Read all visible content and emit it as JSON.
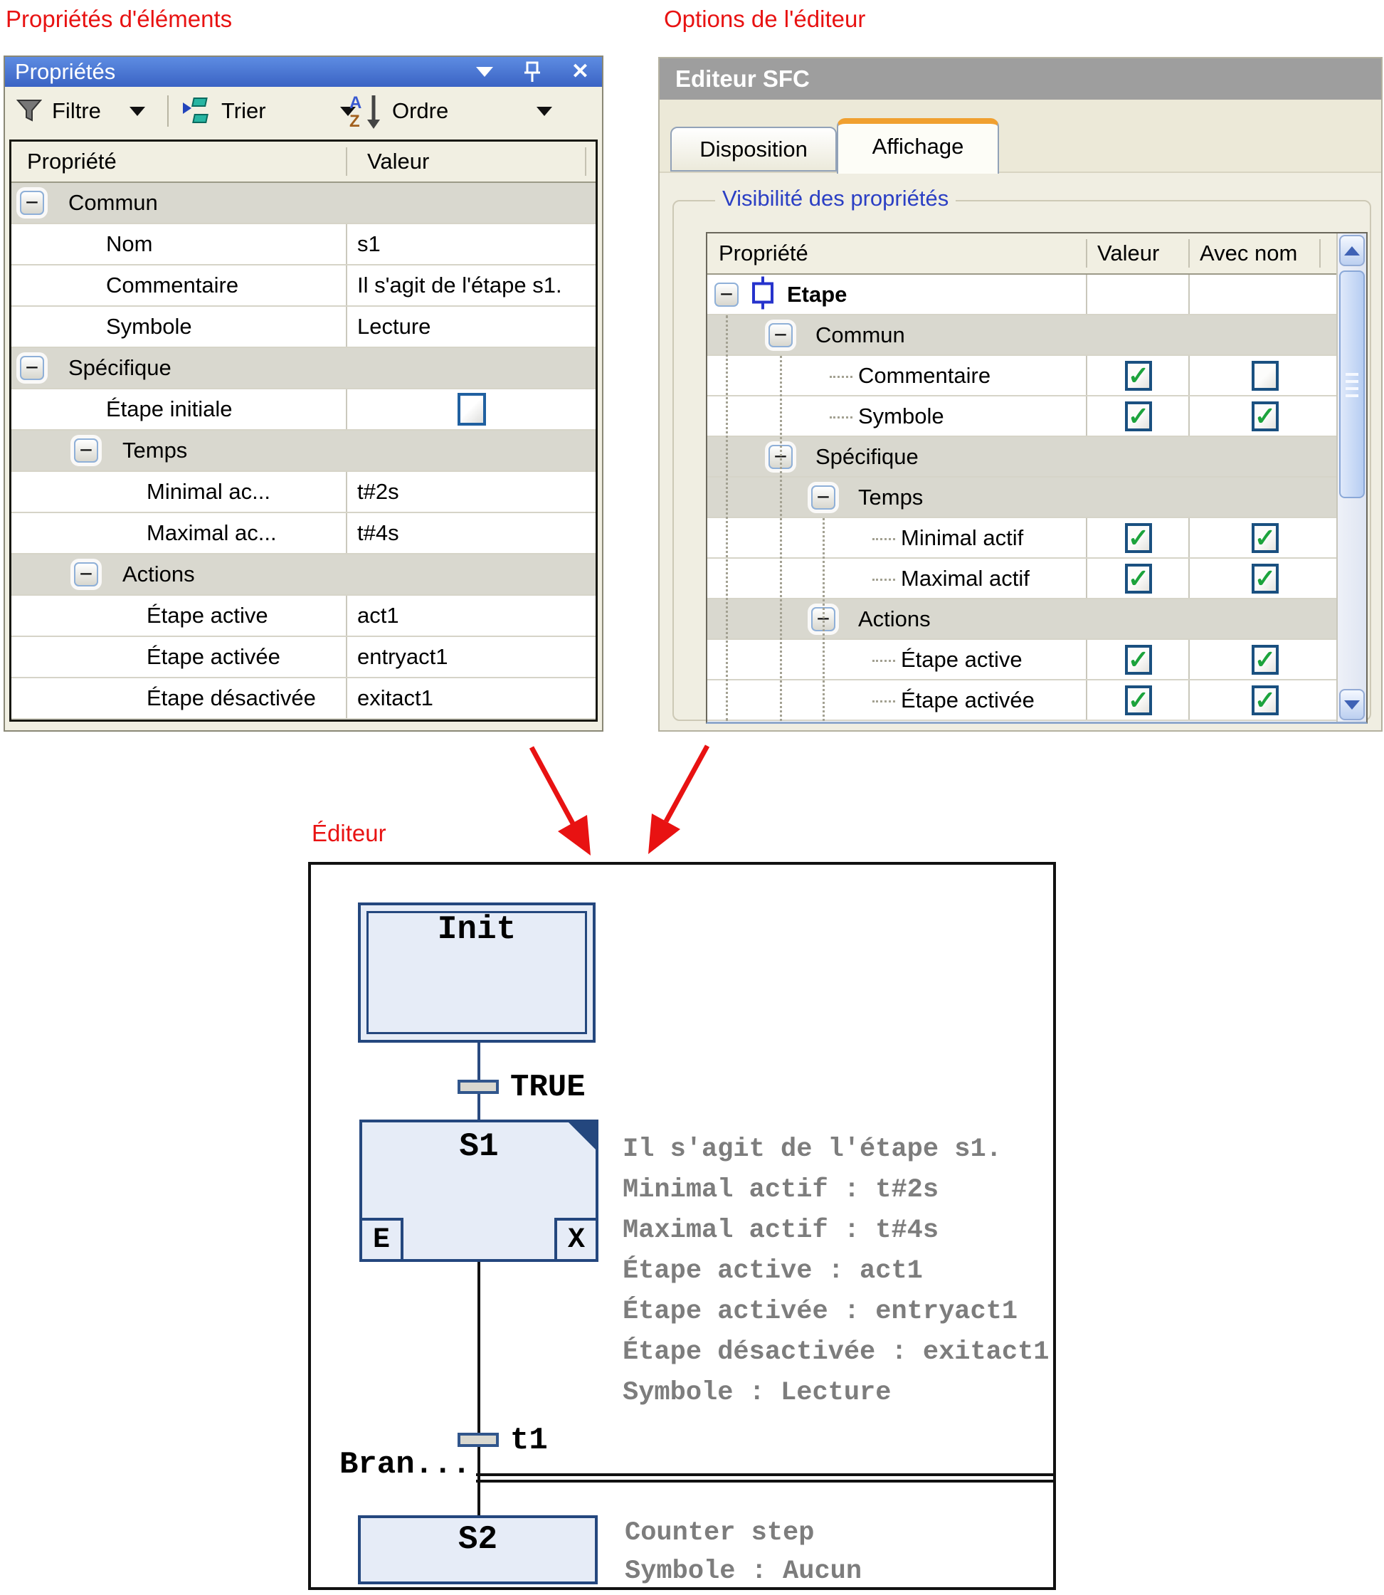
{
  "annotation_labels": {
    "left": "Propriétés d'éléments",
    "right": "Options de l'éditeur",
    "editor": "Éditeur"
  },
  "properties_window": {
    "title": "Propriétés",
    "toolbar": {
      "filter": "Filtre",
      "sort": "Trier",
      "order": "Ordre"
    },
    "columns": [
      "Propriété",
      "Valeur"
    ],
    "rows": [
      {
        "kind": "group",
        "level": 0,
        "label": "Commun"
      },
      {
        "kind": "item",
        "level": 1,
        "label": "Nom",
        "value": "s1"
      },
      {
        "kind": "item",
        "level": 1,
        "label": "Commentaire",
        "value": "Il s'agit de l'étape s1."
      },
      {
        "kind": "item",
        "level": 1,
        "label": "Symbole",
        "value": "Lecture"
      },
      {
        "kind": "group",
        "level": 0,
        "label": "Spécifique"
      },
      {
        "kind": "item",
        "level": 1,
        "label": "Étape initiale",
        "value": "",
        "checkbox": "unchecked"
      },
      {
        "kind": "group",
        "level": 1,
        "label": "Temps"
      },
      {
        "kind": "item",
        "level": 2,
        "label": "Minimal ac...",
        "value": "t#2s"
      },
      {
        "kind": "item",
        "level": 2,
        "label": "Maximal ac...",
        "value": "t#4s"
      },
      {
        "kind": "group",
        "level": 1,
        "label": "Actions"
      },
      {
        "kind": "item",
        "level": 2,
        "label": "Étape active",
        "value": "act1"
      },
      {
        "kind": "item",
        "level": 2,
        "label": "Étape activée",
        "value": "entryact1"
      },
      {
        "kind": "item",
        "level": 2,
        "label": "Étape désactivée",
        "value": "exitact1"
      }
    ]
  },
  "editor_options": {
    "title": "Editeur SFC",
    "tabs": [
      {
        "label": "Disposition",
        "active": false
      },
      {
        "label": "Affichage",
        "active": true
      }
    ],
    "groupbox_label": "Visibilité des propriétés",
    "columns": [
      "Propriété",
      "Valeur",
      "Avec nom"
    ],
    "rows": [
      {
        "kind": "root",
        "level": 0,
        "label": "Etape",
        "icon": "sfc-step-icon"
      },
      {
        "kind": "group",
        "level": 1,
        "label": "Commun"
      },
      {
        "kind": "check",
        "level": 2,
        "label": "Commentaire",
        "valeur": true,
        "avec_nom": false
      },
      {
        "kind": "check",
        "level": 2,
        "label": "Symbole",
        "valeur": true,
        "avec_nom": true
      },
      {
        "kind": "group",
        "level": 1,
        "label": "Spécifique"
      },
      {
        "kind": "group",
        "level": 2,
        "label": "Temps"
      },
      {
        "kind": "check",
        "level": 3,
        "label": "Minimal actif",
        "valeur": true,
        "avec_nom": true
      },
      {
        "kind": "check",
        "level": 3,
        "label": "Maximal actif",
        "valeur": true,
        "avec_nom": true
      },
      {
        "kind": "group",
        "level": 2,
        "label": "Actions"
      },
      {
        "kind": "check",
        "level": 3,
        "label": "Étape active",
        "valeur": true,
        "avec_nom": true
      },
      {
        "kind": "check",
        "level": 3,
        "label": "Étape activée",
        "valeur": true,
        "avec_nom": true
      }
    ]
  },
  "sfc_editor": {
    "steps": {
      "init": "Init",
      "s1": "S1",
      "s2": "S2"
    },
    "qualifiers": {
      "entry": "E",
      "exit": "X"
    },
    "transitions": {
      "t_true": "TRUE",
      "t1": "t1"
    },
    "branch_label": "Bran...",
    "s1_info": [
      "Il s'agit de l'étape s1.",
      "Minimal actif : t#2s",
      "Maximal actif : t#4s",
      "Étape active : act1",
      "Étape activée : entryact1",
      "Étape désactivée : exitact1",
      "Symbole : Lecture"
    ],
    "s2_info": [
      "Counter step",
      "Symbole : Aucun"
    ]
  },
  "colors": {
    "annotation_red": "#e81212",
    "titlebar_blue": "#3f6fd1",
    "dialog_title_gray": "#9e9e9e",
    "step_border_blue": "#24477e",
    "step_fill_blue": "#e6ecf7",
    "check_green": "#1ca33c",
    "groupbox_label_blue": "#2b3fc4",
    "active_tab_orange": "#f0a030",
    "annotation_text_gray": "#7d7d7d"
  }
}
